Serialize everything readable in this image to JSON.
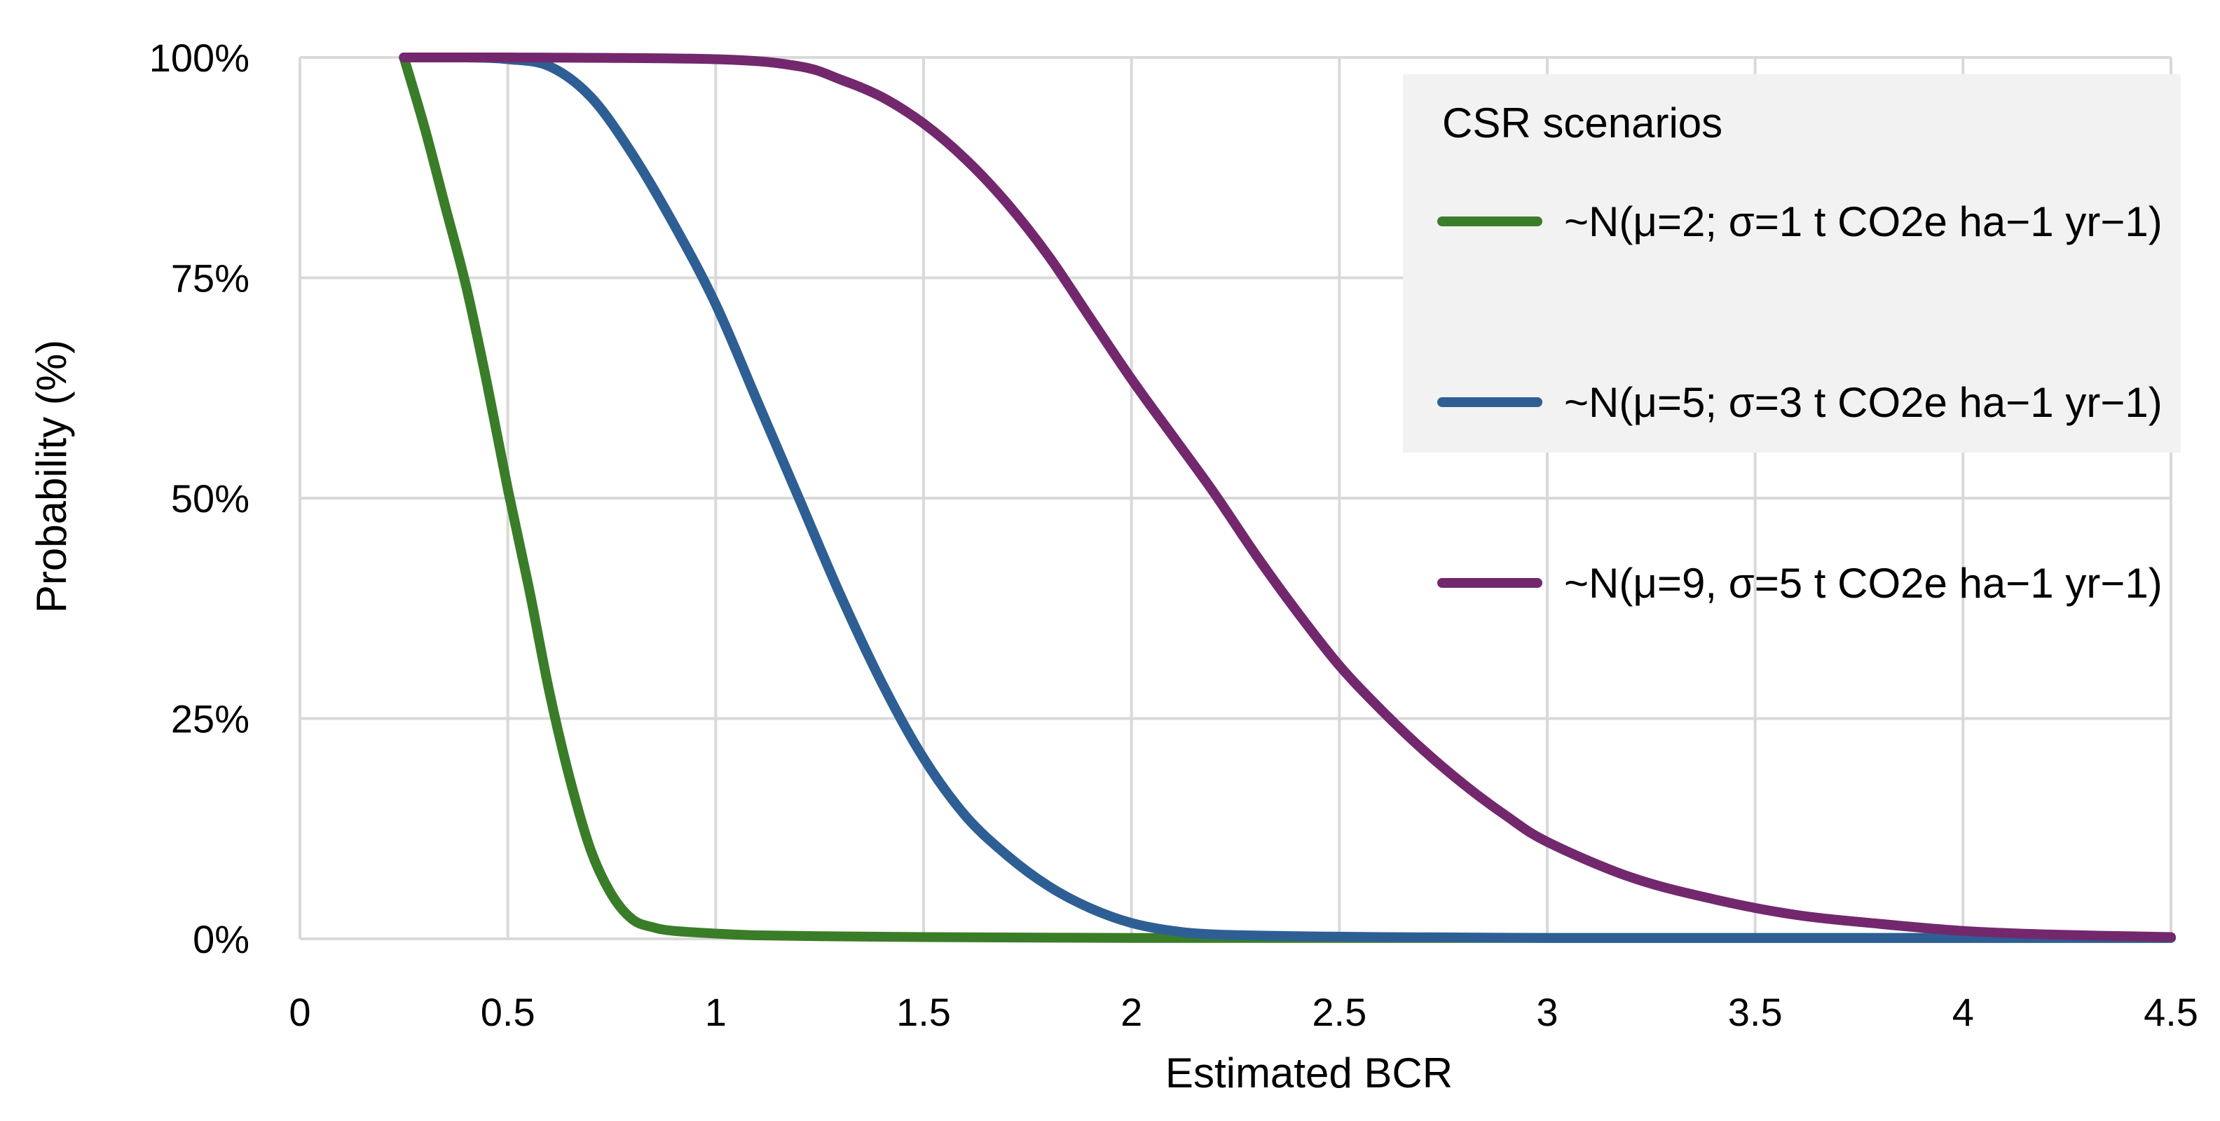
{
  "chart_data": {
    "type": "line",
    "title": "",
    "xlabel": "Estimated BCR",
    "ylabel": "Probability (%)",
    "xlim": [
      0,
      4.5
    ],
    "ylim": [
      0,
      100
    ],
    "x_ticks": [
      0,
      0.5,
      1,
      1.5,
      2,
      2.5,
      3,
      3.5,
      4,
      4.5
    ],
    "x_tick_labels": [
      "0",
      "0.5",
      "1",
      "1.5",
      "2",
      "2.5",
      "3",
      "3.5",
      "4",
      "4.5"
    ],
    "y_ticks": [
      0,
      25,
      50,
      75,
      100
    ],
    "y_tick_labels": [
      "0%",
      "25%",
      "50%",
      "75%",
      "100%"
    ],
    "grid": true,
    "legend_title": "CSR scenarios",
    "legend_position": "top-right",
    "series": [
      {
        "name": "~N(μ=2; σ=1  t CO2e ha−1 yr−1)",
        "color": "#3a7d28",
        "x": [
          0.25,
          0.3,
          0.35,
          0.4,
          0.45,
          0.5,
          0.55,
          0.6,
          0.65,
          0.7,
          0.75,
          0.8,
          0.85,
          0.9,
          1.0,
          1.1,
          1.25,
          1.5,
          2.0,
          2.5,
          3.0,
          3.5,
          4.0,
          4.5
        ],
        "y": [
          100,
          92,
          83,
          74,
          63,
          51,
          40,
          28,
          18,
          10,
          5,
          2.2,
          1.3,
          0.9,
          0.6,
          0.4,
          0.3,
          0.2,
          0.1,
          0.1,
          0.1,
          0.1,
          0.1,
          0.1
        ]
      },
      {
        "name": "~N(μ=5; σ=3  t CO2e ha−1 yr−1)",
        "color": "#2e5f94",
        "x": [
          0.25,
          0.4,
          0.5,
          0.6,
          0.7,
          0.8,
          0.9,
          1.0,
          1.1,
          1.2,
          1.3,
          1.4,
          1.5,
          1.6,
          1.7,
          1.8,
          1.9,
          2.0,
          2.1,
          2.2,
          2.4,
          2.6,
          3.0,
          3.5,
          4.0,
          4.5
        ],
        "y": [
          100,
          100,
          99.8,
          99,
          95.5,
          89,
          81,
          72,
          61,
          50,
          39,
          29,
          20.5,
          14,
          9.5,
          6,
          3.5,
          1.8,
          0.9,
          0.5,
          0.3,
          0.2,
          0.1,
          0.1,
          0.1,
          0.1
        ]
      },
      {
        "name": "~N(μ=9, σ=5  t CO2e ha−1 yr−1)",
        "color": "#73286e",
        "x": [
          0.25,
          0.5,
          1.0,
          1.2,
          1.3,
          1.4,
          1.5,
          1.6,
          1.7,
          1.8,
          1.9,
          2.0,
          2.1,
          2.2,
          2.3,
          2.4,
          2.5,
          2.6,
          2.7,
          2.8,
          2.9,
          3.0,
          3.2,
          3.4,
          3.6,
          3.8,
          4.0,
          4.2,
          4.5
        ],
        "y": [
          100,
          100,
          99.8,
          99,
          97.5,
          95.5,
          92.5,
          88.5,
          83.5,
          77.5,
          70.5,
          63.5,
          57,
          50.5,
          43.5,
          37,
          31,
          26,
          21.5,
          17.5,
          14,
          11,
          7,
          4.5,
          2.7,
          1.7,
          0.9,
          0.5,
          0.2
        ]
      }
    ]
  }
}
